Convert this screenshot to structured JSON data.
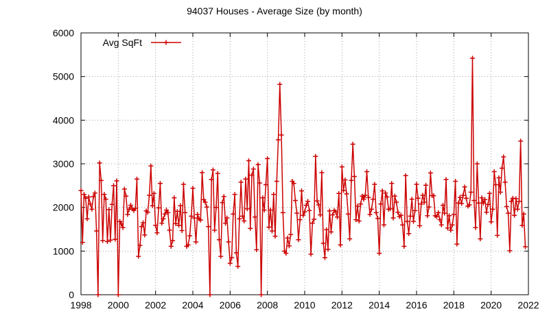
{
  "chart_data": {
    "type": "line",
    "title": "94037 Houses - Average Size (by month)",
    "xlabel": "",
    "ylabel": "",
    "xlim": [
      1998,
      2022
    ],
    "ylim": [
      0,
      6000
    ],
    "x_ticks": [
      "1998",
      "2000",
      "2002",
      "2004",
      "2006",
      "2008",
      "2010",
      "2012",
      "2014",
      "2016",
      "2018",
      "2020",
      "2022"
    ],
    "y_ticks": [
      "0",
      "1000",
      "2000",
      "3000",
      "4000",
      "5000",
      "6000"
    ],
    "grid": true,
    "legend": "top-left",
    "colors": {
      "series": "#cc0000",
      "grid": "#a0a0a0"
    },
    "series": [
      {
        "name": "Avg SqFt",
        "start": "1998-01",
        "interval": "month",
        "values": [
          2390,
          1200,
          2300,
          2210,
          1740,
          2240,
          2080,
          1960,
          2250,
          2330,
          1460,
          0,
          3020,
          2620,
          1240,
          2300,
          2190,
          1220,
          1950,
          1250,
          2070,
          2500,
          1270,
          2610,
          0,
          1680,
          1620,
          1540,
          2420,
          2260,
          1840,
          1960,
          2050,
          1970,
          1930,
          1980,
          2650,
          880,
          1130,
          1560,
          1650,
          1370,
          1920,
          1890,
          2280,
          2950,
          2040,
          2320,
          1590,
          1420,
          1990,
          2550,
          1640,
          1740,
          1850,
          1940,
          1880,
          1480,
          1110,
          1240,
          2220,
          1630,
          1910,
          1590,
          2040,
          1470,
          2530,
          1880,
          1110,
          1140,
          1350,
          1800,
          2440,
          1760,
          1210,
          1840,
          1740,
          1710,
          2800,
          2180,
          2120,
          2010,
          1560,
          0,
          2640,
          2860,
          1480,
          2000,
          2780,
          1260,
          880,
          2110,
          2250,
          1640,
          1760,
          1210,
          720,
          850,
          1850,
          2300,
          960,
          650,
          1740,
          2580,
          1800,
          1690,
          2650,
          1970,
          3070,
          1520,
          2740,
          2880,
          1780,
          1030,
          2980,
          2560,
          0,
          2220,
          1940,
          2520,
          3120,
          1550,
          1940,
          1460,
          2300,
          1340,
          2600,
          3550,
          4820,
          3660,
          1880,
          1000,
          950,
          1300,
          1120,
          1380,
          2600,
          2550,
          2160,
          1870,
          1260,
          1720,
          2380,
          1820,
          1900,
          2050,
          2140,
          1930,
          930,
          1640,
          1730,
          3170,
          2150,
          2060,
          1830,
          2800,
          1180,
          850,
          1490,
          1040,
          1920,
          1440,
          1830,
          1930,
          1900,
          1780,
          2320,
          1140,
          2930,
          2390,
          2630,
          2310,
          1850,
          1280,
          2620,
          3450,
          2710,
          1720,
          2030,
          1690,
          2080,
          2260,
          2190,
          2280,
          2820,
          2230,
          1840,
          1960,
          2190,
          2530,
          1880,
          1750,
          950,
          2080,
          2380,
          1600,
          2330,
          2240,
          1960,
          1970,
          2550,
          1760,
          2260,
          2120,
          1890,
          1790,
          1820,
          1600,
          1110,
          2730,
          1680,
          1400,
          1800,
          2190,
          1680,
          1930,
          2530,
          2210,
          1580,
          2080,
          2280,
          2120,
          2510,
          1810,
          2010,
          2790,
          2270,
          2270,
          1810,
          1790,
          1880,
          1720,
          1600,
          2050,
          1870,
          2640,
          1530,
          1810,
          1480,
          1600,
          1840,
          2600,
          1160,
          2100,
          2230,
          2090,
          2280,
          2470,
          2210,
          2030,
          2060,
          2350,
          5420,
          2160,
          1540,
          3000,
          2100,
          1280,
          2220,
          2100,
          2180,
          1890,
          2070,
          2320,
          1670,
          1960,
          2820,
          2520,
          1360,
          2680,
          2350,
          2900,
          3160,
          2580,
          2020,
          1870,
          1010,
          2140,
          2210,
          1820,
          2200,
          1960,
          2140,
          3520,
          1590,
          1850,
          1100
        ]
      }
    ]
  }
}
